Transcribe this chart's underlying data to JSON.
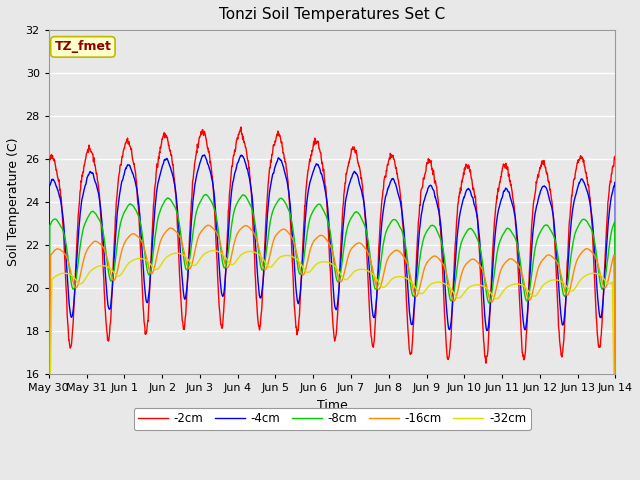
{
  "title": "Tonzi Soil Temperatures Set C",
  "xlabel": "Time",
  "ylabel": "Soil Temperature (C)",
  "ylim": [
    16,
    32
  ],
  "yticks": [
    16,
    18,
    20,
    22,
    24,
    26,
    28,
    30,
    32
  ],
  "annotation_text": "TZ_fmet",
  "annotation_color": "#8B0000",
  "annotation_bg": "#FFFFCC",
  "annotation_border": "#BBBB00",
  "fig_bg": "#E8E8E8",
  "plot_bg": "#E8E8E8",
  "grid_color": "#FFFFFF",
  "line_colors": {
    "-2cm": "#FF0000",
    "-4cm": "#0000FF",
    "-8cm": "#00CC00",
    "-16cm": "#FF8800",
    "-32cm": "#DDDD00"
  },
  "line_width": 1.0,
  "n_days": 15,
  "samples_per_day": 144,
  "xtick_labels": [
    "May 30",
    "May 31",
    "Jun 1",
    "Jun 2",
    "Jun 3",
    "Jun 4",
    "Jun 5",
    "Jun 6",
    "Jun 7",
    "Jun 8",
    "Jun 9",
    "Jun 10",
    "Jun 11",
    "Jun 12",
    "Jun 13",
    "Jun 14"
  ],
  "xtick_positions": [
    0,
    1,
    2,
    3,
    4,
    5,
    6,
    7,
    8,
    9,
    10,
    11,
    12,
    13,
    14,
    15
  ]
}
